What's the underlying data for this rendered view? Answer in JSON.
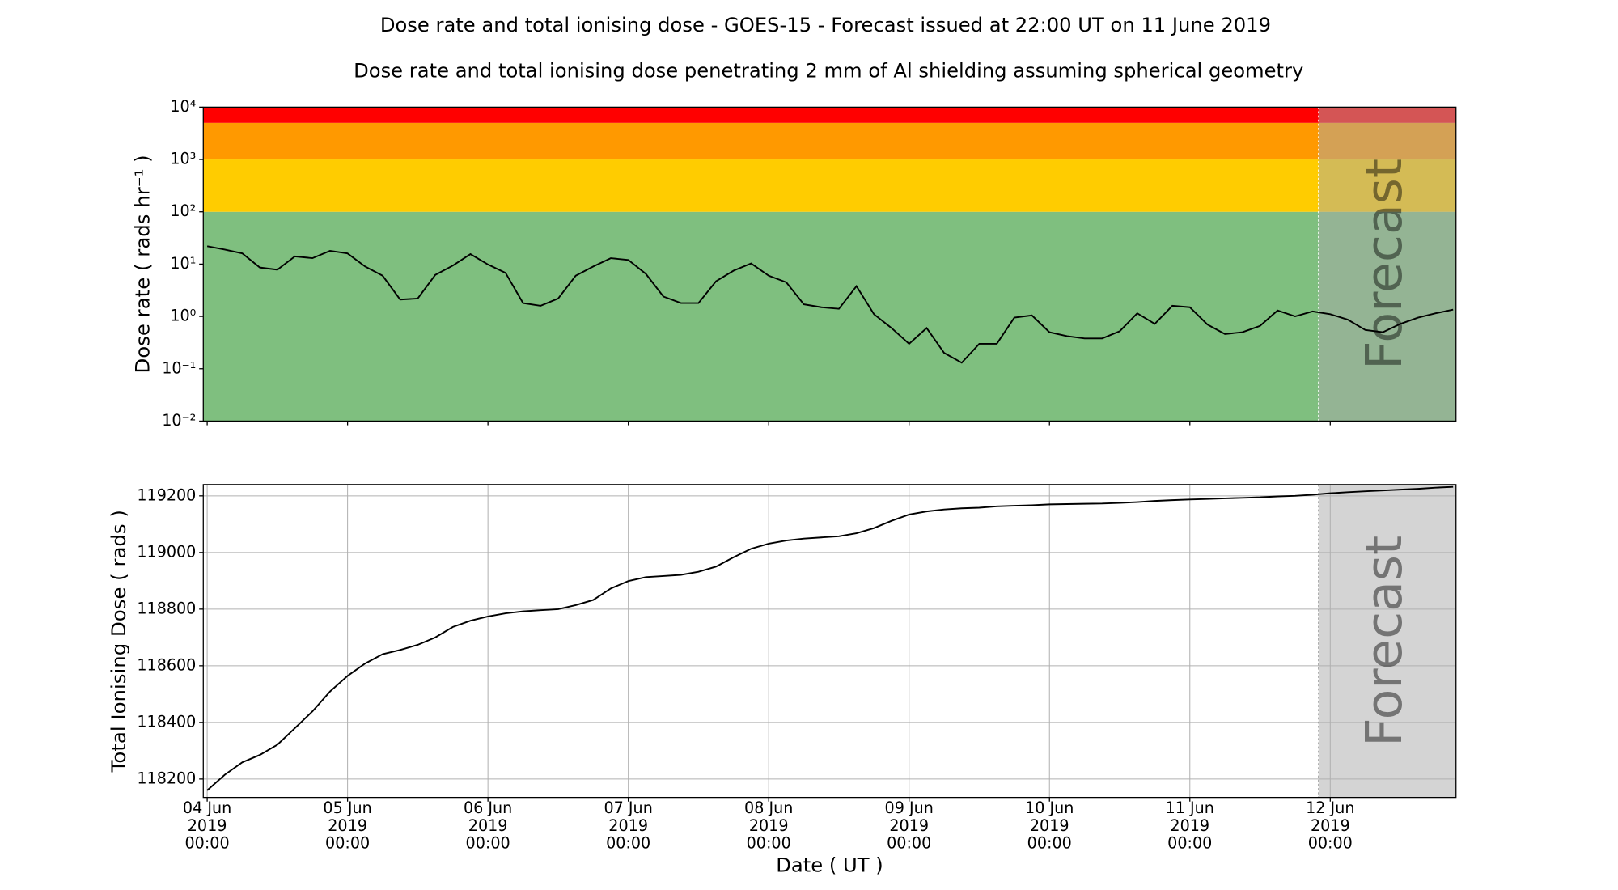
{
  "title": "Dose rate and total ionising dose - GOES-15 - Forecast issued at 22:00 UT on 11 June 2019",
  "subtitle": "Dose rate and total ionising dose penetrating 2 mm of Al shielding assuming spherical geometry",
  "chart_data": [
    {
      "type": "line",
      "ylabel": "Dose rate ( rads hr⁻¹ )",
      "log_y": true,
      "grid": false,
      "color": "#000000",
      "xlim": [
        "2019-06-03T23:20",
        "2019-06-12T21:30"
      ],
      "xticks": [
        "2019-06-04T00:00",
        "2019-06-05T00:00",
        "2019-06-06T00:00",
        "2019-06-07T00:00",
        "2019-06-08T00:00",
        "2019-06-09T00:00",
        "2019-06-10T00:00",
        "2019-06-11T00:00",
        "2019-06-12T00:00"
      ],
      "ylim": [
        0.01,
        10000
      ],
      "yticks": [
        {
          "value": 0.01,
          "label": "10⁻²"
        },
        {
          "value": 0.1,
          "label": "10⁻¹"
        },
        {
          "value": 1,
          "label": "10⁰"
        },
        {
          "value": 10,
          "label": "10¹"
        },
        {
          "value": 100,
          "label": "10²"
        },
        {
          "value": 1000,
          "label": "10³"
        },
        {
          "value": 10000,
          "label": "10⁴"
        }
      ],
      "bands": [
        {
          "from": 0.01,
          "to": 100,
          "color": "#7fbf7f"
        },
        {
          "from": 100,
          "to": 1000,
          "color": "#ffcc00"
        },
        {
          "from": 1000,
          "to": 5000,
          "color": "#ff9900"
        },
        {
          "from": 5000,
          "to": 10000,
          "color": "#ff0000"
        }
      ],
      "forecast_start": "2019-06-11T22:00",
      "forecast_label": "Forecast",
      "forecast_color": "#a9a9a9",
      "x": [
        "2019-06-04T00:00",
        "2019-06-04T03:00",
        "2019-06-04T06:00",
        "2019-06-04T09:00",
        "2019-06-04T12:00",
        "2019-06-04T15:00",
        "2019-06-04T18:00",
        "2019-06-04T21:00",
        "2019-06-05T00:00",
        "2019-06-05T03:00",
        "2019-06-05T06:00",
        "2019-06-05T09:00",
        "2019-06-05T12:00",
        "2019-06-05T15:00",
        "2019-06-05T18:00",
        "2019-06-05T21:00",
        "2019-06-06T00:00",
        "2019-06-06T03:00",
        "2019-06-06T06:00",
        "2019-06-06T09:00",
        "2019-06-06T12:00",
        "2019-06-06T15:00",
        "2019-06-06T18:00",
        "2019-06-06T21:00",
        "2019-06-07T00:00",
        "2019-06-07T03:00",
        "2019-06-07T06:00",
        "2019-06-07T09:00",
        "2019-06-07T12:00",
        "2019-06-07T15:00",
        "2019-06-07T18:00",
        "2019-06-07T21:00",
        "2019-06-08T00:00",
        "2019-06-08T03:00",
        "2019-06-08T06:00",
        "2019-06-08T09:00",
        "2019-06-08T12:00",
        "2019-06-08T15:00",
        "2019-06-08T18:00",
        "2019-06-08T21:00",
        "2019-06-09T00:00",
        "2019-06-09T03:00",
        "2019-06-09T06:00",
        "2019-06-09T09:00",
        "2019-06-09T12:00",
        "2019-06-09T15:00",
        "2019-06-09T18:00",
        "2019-06-09T21:00",
        "2019-06-10T00:00",
        "2019-06-10T03:00",
        "2019-06-10T06:00",
        "2019-06-10T09:00",
        "2019-06-10T12:00",
        "2019-06-10T15:00",
        "2019-06-10T18:00",
        "2019-06-10T21:00",
        "2019-06-11T00:00",
        "2019-06-11T03:00",
        "2019-06-11T06:00",
        "2019-06-11T09:00",
        "2019-06-11T12:00",
        "2019-06-11T15:00",
        "2019-06-11T18:00",
        "2019-06-11T21:00",
        "2019-06-12T00:00",
        "2019-06-12T03:00",
        "2019-06-12T06:00",
        "2019-06-12T09:00",
        "2019-06-12T12:00",
        "2019-06-12T15:00",
        "2019-06-12T18:00",
        "2019-06-12T21:00"
      ],
      "values": [
        22,
        19,
        16,
        8.6,
        7.8,
        14,
        13,
        18,
        16,
        9,
        6,
        2.1,
        2.2,
        6.2,
        9.4,
        15.5,
        9.8,
        6.8,
        1.8,
        1.6,
        2.2,
        6,
        9,
        13,
        12,
        6.5,
        2.4,
        1.8,
        1.8,
        4.7,
        7.5,
        10.3,
        6,
        4.5,
        1.7,
        1.5,
        1.4,
        3.8,
        1.1,
        0.6,
        0.3,
        0.6,
        0.2,
        0.13,
        0.3,
        0.3,
        0.95,
        1.05,
        0.5,
        0.42,
        0.38,
        0.38,
        0.52,
        1.15,
        0.72,
        1.6,
        1.5,
        0.7,
        0.46,
        0.5,
        0.66,
        1.3,
        1,
        1.25,
        1.1,
        0.87,
        0.55,
        0.5,
        0.72,
        0.95,
        1.15,
        1.35
      ]
    },
    {
      "type": "line",
      "ylabel": "Total Ionising Dose ( rads )",
      "xlabel": "Date ( UT )",
      "log_y": false,
      "grid": true,
      "color": "#000000",
      "xlim": [
        "2019-06-03T23:20",
        "2019-06-12T21:30"
      ],
      "xticks": [
        {
          "value": "2019-06-04T00:00",
          "label": "04 Jun\n2019\n00:00"
        },
        {
          "value": "2019-06-05T00:00",
          "label": "05 Jun\n2019\n00:00"
        },
        {
          "value": "2019-06-06T00:00",
          "label": "06 Jun\n2019\n00:00"
        },
        {
          "value": "2019-06-07T00:00",
          "label": "07 Jun\n2019\n00:00"
        },
        {
          "value": "2019-06-08T00:00",
          "label": "08 Jun\n2019\n00:00"
        },
        {
          "value": "2019-06-09T00:00",
          "label": "09 Jun\n2019\n00:00"
        },
        {
          "value": "2019-06-10T00:00",
          "label": "10 Jun\n2019\n00:00"
        },
        {
          "value": "2019-06-11T00:00",
          "label": "11 Jun\n2019\n00:00"
        },
        {
          "value": "2019-06-12T00:00",
          "label": "12 Jun\n2019\n00:00"
        }
      ],
      "ylim": [
        118135,
        119240
      ],
      "yticks": [
        118200,
        118400,
        118600,
        118800,
        119000,
        119200
      ],
      "forecast_start": "2019-06-11T22:00",
      "forecast_label": "Forecast",
      "forecast_color": "#a9a9a9",
      "x": [
        "2019-06-04T00:00",
        "2019-06-04T03:00",
        "2019-06-04T06:00",
        "2019-06-04T09:00",
        "2019-06-04T12:00",
        "2019-06-04T15:00",
        "2019-06-04T18:00",
        "2019-06-04T21:00",
        "2019-06-05T00:00",
        "2019-06-05T03:00",
        "2019-06-05T06:00",
        "2019-06-05T09:00",
        "2019-06-05T12:00",
        "2019-06-05T15:00",
        "2019-06-05T18:00",
        "2019-06-05T21:00",
        "2019-06-06T00:00",
        "2019-06-06T03:00",
        "2019-06-06T06:00",
        "2019-06-06T09:00",
        "2019-06-06T12:00",
        "2019-06-06T15:00",
        "2019-06-06T18:00",
        "2019-06-06T21:00",
        "2019-06-07T00:00",
        "2019-06-07T03:00",
        "2019-06-07T06:00",
        "2019-06-07T09:00",
        "2019-06-07T12:00",
        "2019-06-07T15:00",
        "2019-06-07T18:00",
        "2019-06-07T21:00",
        "2019-06-08T00:00",
        "2019-06-08T03:00",
        "2019-06-08T06:00",
        "2019-06-08T09:00",
        "2019-06-08T12:00",
        "2019-06-08T15:00",
        "2019-06-08T18:00",
        "2019-06-08T21:00",
        "2019-06-09T00:00",
        "2019-06-09T03:00",
        "2019-06-09T06:00",
        "2019-06-09T09:00",
        "2019-06-09T12:00",
        "2019-06-09T15:00",
        "2019-06-09T18:00",
        "2019-06-09T21:00",
        "2019-06-10T00:00",
        "2019-06-10T03:00",
        "2019-06-10T06:00",
        "2019-06-10T09:00",
        "2019-06-10T12:00",
        "2019-06-10T15:00",
        "2019-06-10T18:00",
        "2019-06-10T21:00",
        "2019-06-11T00:00",
        "2019-06-11T03:00",
        "2019-06-11T06:00",
        "2019-06-11T09:00",
        "2019-06-11T12:00",
        "2019-06-11T15:00",
        "2019-06-11T18:00",
        "2019-06-11T21:00",
        "2019-06-12T00:00",
        "2019-06-12T03:00",
        "2019-06-12T06:00",
        "2019-06-12T09:00",
        "2019-06-12T12:00",
        "2019-06-12T15:00",
        "2019-06-12T18:00",
        "2019-06-12T21:00"
      ],
      "values": [
        118160,
        118215,
        118259,
        118285,
        118321,
        118380,
        118439,
        118509,
        118564,
        118608,
        118641,
        118656,
        118674,
        118700,
        118737,
        118759,
        118774,
        118785,
        118792,
        118796,
        118800,
        118814,
        118832,
        118873,
        118899,
        118913,
        118917,
        118921,
        118932,
        118950,
        118983,
        119013,
        119031,
        119042,
        119049,
        119053,
        119057,
        119068,
        119086,
        119112,
        119134,
        119145,
        119152,
        119156,
        119158,
        119163,
        119165,
        119167,
        119170,
        119171,
        119172,
        119173,
        119175,
        119178,
        119182,
        119185,
        119187,
        119189,
        119191,
        119193,
        119195,
        119198,
        119200,
        119204,
        119209,
        119213,
        119216,
        119219,
        119222,
        119225,
        119229,
        119232
      ]
    }
  ]
}
